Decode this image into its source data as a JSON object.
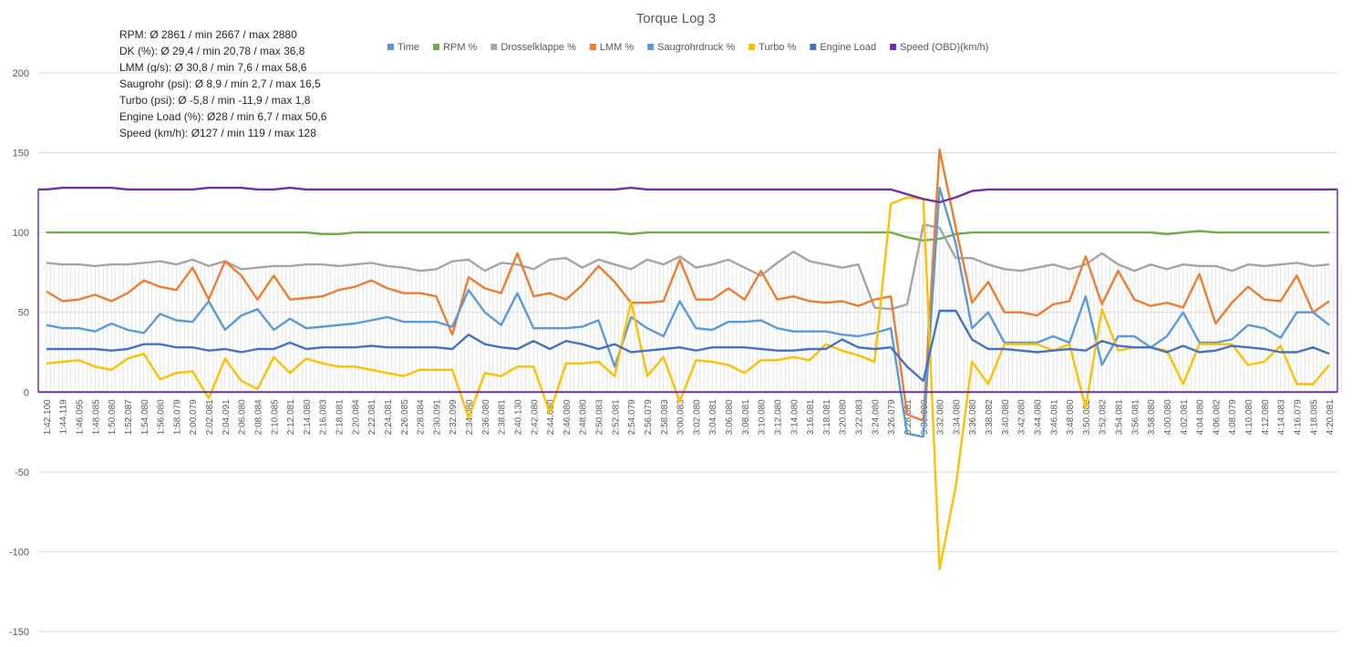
{
  "chart_data": {
    "type": "line",
    "title": "Torque Log 3",
    "stats_box": [
      "RPM: Ø 2861 / min 2667 / max 2880",
      "DK (%): Ø 29,4 / min 20,78 / max 36,8",
      "LMM (g/s): Ø 30,8 / min 7,6 / max 58,6",
      "Saugrohr (psi): Ø 8,9 / min 2,7 / max 16,5",
      "Turbo (psi): Ø -5,8 / min -11,9 / max 1,8",
      "Engine Load (%): Ø28 / min 6,7 / max 50,6",
      "Speed (km/h): Ø127 / min 119 / max 128"
    ],
    "ylim": [
      -150,
      200
    ],
    "yticks": [
      200,
      150,
      100,
      50,
      0,
      -50,
      -100,
      -150
    ],
    "ytick_labels": [
      "200",
      "150",
      "100",
      "50",
      "0",
      "-50",
      "-100",
      "-150"
    ],
    "legend_position": "top",
    "grid": true,
    "x_tick_labels": [
      "1:42.100",
      "1:44.119",
      "1:46.095",
      "1:48.085",
      "1:50.080",
      "1:52.087",
      "1:54.080",
      "1:56.080",
      "1:58.079",
      "2:00.079",
      "2:02.081",
      "2:04.091",
      "2:06.080",
      "2:08.084",
      "2:10.085",
      "2:12.081",
      "2:14.080",
      "2:16.083",
      "2:18.081",
      "2:20.084",
      "2:22.081",
      "2:24.081",
      "2:26.085",
      "2:28.084",
      "2:30.091",
      "2:32.099",
      "2:34.080",
      "2:36.080",
      "2:38.081",
      "2:40.130",
      "2:42.080",
      "2:44.080",
      "2:46.080",
      "2:48.080",
      "2:50.083",
      "2:52.081",
      "2:54.079",
      "2:56.079",
      "2:58.083",
      "3:00.083",
      "3:02.080",
      "3:04.081",
      "3:06.080",
      "3:08.081",
      "3:10.080",
      "3:12.080",
      "3:14.080",
      "3:16.081",
      "3:18.081",
      "3:20.080",
      "3:22.083",
      "3:24.080",
      "3:26.079",
      "3:28.081",
      "3:30.080",
      "3:32.080",
      "3:34.080",
      "3:36.080",
      "3:38.082",
      "3:40.080",
      "3:42.080",
      "3:44.080",
      "3:46.081",
      "3:48.080",
      "3:50.082",
      "3:52.082",
      "3:54.081",
      "3:56.081",
      "3:58.080",
      "4:00.080",
      "4:02.081",
      "4:04.080",
      "4:06.082",
      "4:08.079",
      "4:10.080",
      "4:12.080",
      "4:14.083",
      "4:16.079",
      "4:18.085",
      "4:20.081"
    ],
    "series": [
      {
        "name": "Time",
        "color": "#5b9bd5",
        "values": []
      },
      {
        "name": "RPM %",
        "color": "#70ad47",
        "values": [
          100,
          100,
          100,
          100,
          100,
          100,
          100,
          100,
          100,
          100,
          100,
          100,
          100,
          100,
          100,
          100,
          100,
          99,
          99,
          100,
          100,
          100,
          100,
          100,
          100,
          100,
          100,
          100,
          100,
          100,
          100,
          100,
          100,
          100,
          100,
          100,
          99,
          100,
          100,
          100,
          100,
          100,
          100,
          100,
          100,
          100,
          100,
          100,
          100,
          100,
          100,
          100,
          100,
          97,
          95,
          96,
          99,
          100,
          100,
          100,
          100,
          100,
          100,
          100,
          100,
          100,
          100,
          100,
          100,
          99,
          100,
          101,
          100,
          100,
          100,
          100,
          100,
          100,
          100,
          100
        ]
      },
      {
        "name": "Drosselklappe %",
        "color": "#a5a5a5",
        "values": [
          81,
          80,
          80,
          79,
          80,
          80,
          81,
          82,
          80,
          83,
          79,
          82,
          77,
          78,
          79,
          79,
          80,
          80,
          79,
          80,
          81,
          79,
          78,
          76,
          77,
          82,
          83,
          76,
          81,
          80,
          77,
          83,
          84,
          78,
          83,
          80,
          77,
          83,
          80,
          85,
          78,
          80,
          83,
          78,
          73,
          81,
          88,
          82,
          80,
          78,
          80,
          53,
          52,
          55,
          105,
          103,
          84,
          84,
          80,
          77,
          76,
          78,
          80,
          77,
          80,
          87,
          80,
          76,
          80,
          77,
          80,
          79,
          79,
          76,
          80,
          79,
          80,
          81,
          79,
          80
        ]
      },
      {
        "name": "LMM %",
        "color": "#ed7d31",
        "values": [
          63,
          57,
          58,
          61,
          57,
          62,
          70,
          66,
          64,
          78,
          58,
          82,
          73,
          58,
          73,
          58,
          59,
          60,
          64,
          66,
          70,
          65,
          62,
          62,
          60,
          36,
          72,
          65,
          62,
          87,
          60,
          62,
          58,
          67,
          79,
          69,
          56,
          56,
          57,
          83,
          58,
          58,
          65,
          58,
          76,
          58,
          60,
          57,
          56,
          57,
          54,
          58,
          60,
          -14,
          -18,
          152,
          103,
          56,
          69,
          50,
          50,
          48,
          55,
          57,
          85,
          55,
          76,
          58,
          54,
          56,
          53,
          74,
          43,
          56,
          66,
          58,
          57,
          73,
          50,
          57
        ]
      },
      {
        "name": "Saugrohrdruck %",
        "color": "#5b9bd5",
        "values": [
          42,
          40,
          40,
          38,
          43,
          39,
          37,
          49,
          45,
          44,
          57,
          39,
          48,
          52,
          39,
          46,
          40,
          41,
          42,
          43,
          45,
          47,
          44,
          44,
          44,
          41,
          64,
          50,
          42,
          62,
          40,
          40,
          40,
          41,
          45,
          16,
          47,
          40,
          35,
          57,
          40,
          39,
          44,
          44,
          45,
          40,
          38,
          38,
          38,
          36,
          35,
          37,
          40,
          -26,
          -28,
          128,
          93,
          40,
          50,
          31,
          31,
          31,
          35,
          31,
          60,
          17,
          35,
          35,
          28,
          35,
          50,
          31,
          31,
          33,
          42,
          40,
          34,
          50,
          50,
          42
        ]
      },
      {
        "name": "Turbo %",
        "color": "#ffc000",
        "values": [
          18,
          19,
          20,
          16,
          14,
          21,
          24,
          8,
          12,
          13,
          -4,
          21,
          7,
          2,
          22,
          12,
          21,
          18,
          16,
          16,
          14,
          12,
          10,
          14,
          14,
          14,
          -16,
          12,
          10,
          16,
          16,
          -13,
          18,
          18,
          19,
          10,
          57,
          10,
          22,
          -6,
          20,
          19,
          17,
          12,
          20,
          20,
          22,
          20,
          30,
          26,
          23,
          19,
          118,
          122,
          121,
          -111,
          -59,
          19,
          5,
          30,
          30,
          30,
          26,
          30,
          -10,
          52,
          26,
          28,
          28,
          26,
          5,
          30,
          30,
          30,
          17,
          19,
          29,
          5,
          5,
          17
        ]
      },
      {
        "name": "Engine Load",
        "color": "#4472c4",
        "values": [
          27,
          27,
          27,
          27,
          26,
          27,
          30,
          30,
          28,
          28,
          26,
          27,
          25,
          27,
          27,
          31,
          27,
          28,
          28,
          28,
          29,
          28,
          28,
          28,
          28,
          27,
          36,
          30,
          28,
          27,
          32,
          27,
          32,
          30,
          27,
          30,
          25,
          26,
          27,
          28,
          26,
          28,
          28,
          28,
          27,
          26,
          26,
          27,
          27,
          33,
          28,
          27,
          28,
          16,
          7,
          51,
          51,
          33,
          27,
          27,
          26,
          25,
          26,
          27,
          26,
          32,
          29,
          28,
          28,
          25,
          29,
          25,
          26,
          29,
          28,
          27,
          25,
          25,
          28,
          24
        ]
      },
      {
        "name": "Speed (OBD)(km/h)",
        "color": "#7030a0",
        "values": [
          127,
          128,
          128,
          128,
          128,
          127,
          127,
          127,
          127,
          127,
          128,
          128,
          128,
          127,
          127,
          128,
          127,
          127,
          127,
          127,
          127,
          127,
          127,
          127,
          127,
          127,
          127,
          127,
          127,
          127,
          127,
          127,
          127,
          127,
          127,
          127,
          128,
          127,
          127,
          127,
          127,
          127,
          127,
          127,
          127,
          127,
          127,
          127,
          127,
          127,
          127,
          127,
          127,
          124,
          121,
          119,
          122,
          126,
          127,
          127,
          127,
          127,
          127,
          127,
          127,
          127,
          127,
          127,
          127,
          127,
          127,
          127,
          127,
          127,
          127,
          127,
          127,
          127,
          127,
          127
        ]
      }
    ]
  }
}
